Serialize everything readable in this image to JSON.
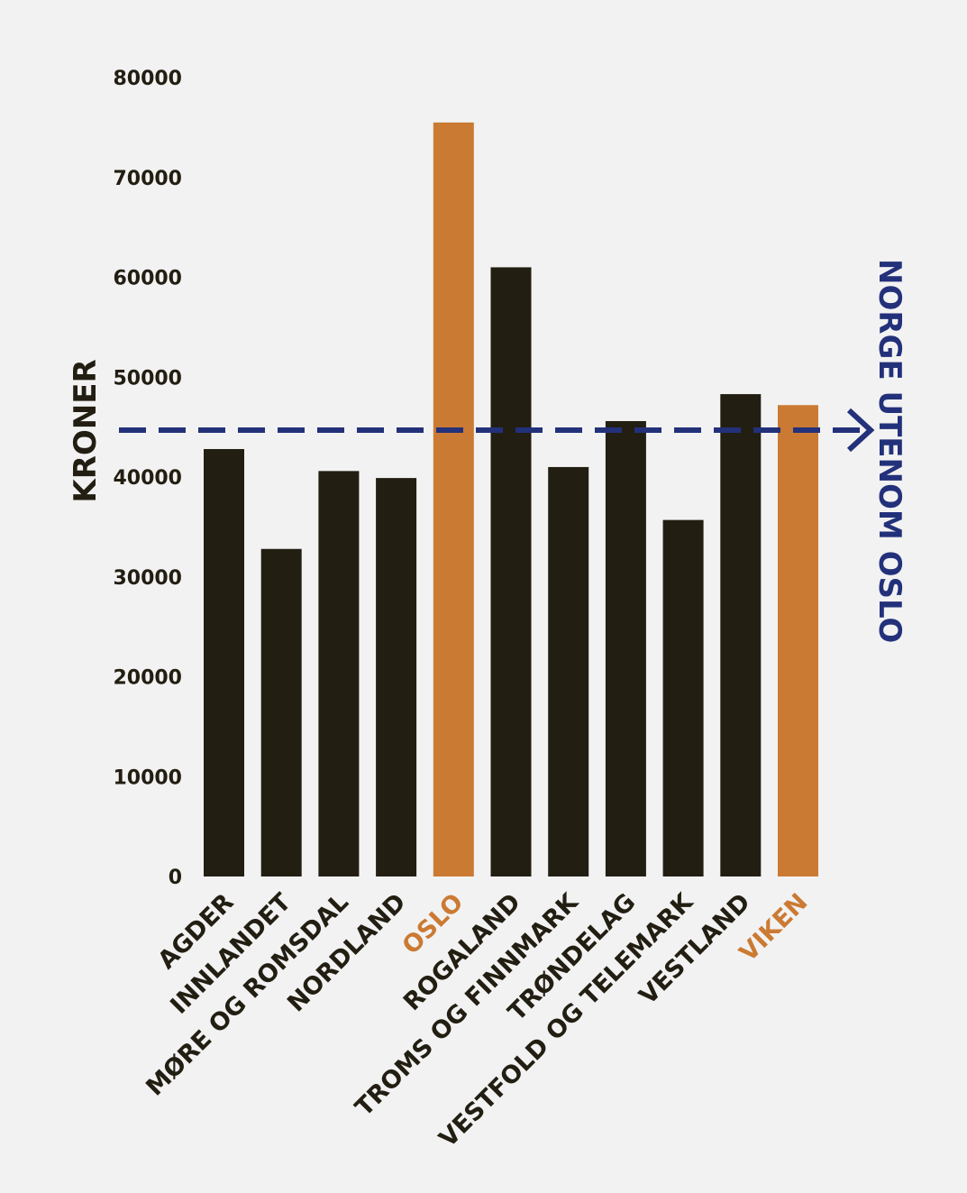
{
  "chart_data": {
    "type": "bar",
    "ylabel": "KRONER",
    "ylim": [
      0,
      80000
    ],
    "yticks": [
      0,
      10000,
      20000,
      30000,
      40000,
      50000,
      60000,
      70000,
      80000
    ],
    "grid": false,
    "categories": [
      "AGDER",
      "INNLANDET",
      "MØRE OG ROMSDAL",
      "NORDLAND",
      "OSLO",
      "ROGALAND",
      "TROMS OG FINNMARK",
      "TRØNDELAG",
      "VESTFOLD OG TELEMARK",
      "VESTLAND",
      "VIKEN"
    ],
    "values": [
      42800,
      32800,
      40600,
      39900,
      75500,
      61000,
      41000,
      45600,
      35700,
      48300,
      47200
    ],
    "highlighted": [
      "OSLO",
      "VIKEN"
    ],
    "reference_line": {
      "label": "NORGE UTENOM OSLO",
      "value": 44700
    }
  },
  "colors": {
    "background": "#f2f2f2",
    "bar": "#221e12",
    "highlight": "#cb7a33",
    "reference": "#23317a",
    "text": "#221e12"
  }
}
